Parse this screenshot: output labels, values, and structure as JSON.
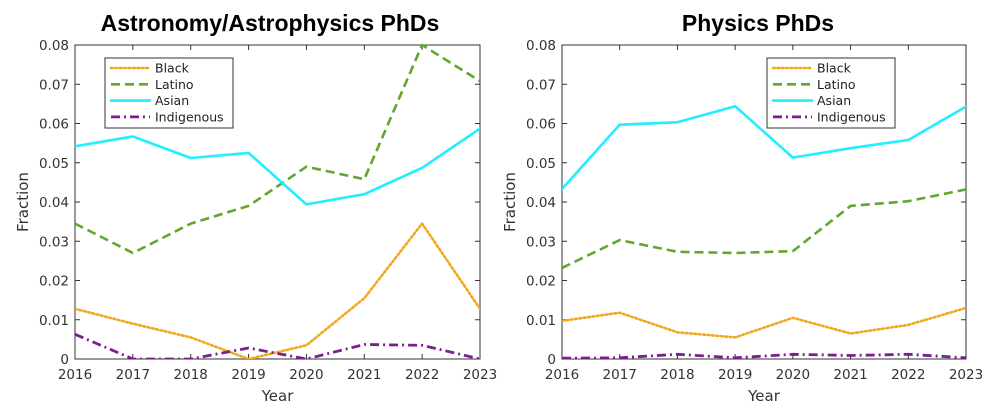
{
  "colors": {
    "black_series": "#f0a81e",
    "latino_series": "#5fa82c",
    "asian_series": "#22eeff",
    "indigenous_series": "#7b1f8f",
    "axis": "#333333"
  },
  "chart_data": [
    {
      "type": "line",
      "title": "Astronomy/Astrophysics PhDs",
      "xlabel": "Year",
      "ylabel": "Fraction",
      "xlim": [
        2016,
        2023
      ],
      "ylim": [
        0,
        0.08
      ],
      "x_ticks": [
        "2016",
        "2017",
        "2018",
        "2019",
        "2020",
        "2021",
        "2022",
        "2023"
      ],
      "y_ticks": [
        "0",
        "0.01",
        "0.02",
        "0.03",
        "0.04",
        "0.05",
        "0.06",
        "0.07",
        "0.08"
      ],
      "legend_position": "top-left",
      "x": [
        2016,
        2017,
        2018,
        2019,
        2020,
        2021,
        2022,
        2023
      ],
      "series": [
        {
          "name": "Black",
          "style": "dotted",
          "values": [
            0.0128,
            0.009,
            0.0055,
            0.0,
            0.0035,
            0.0155,
            0.0345,
            0.0128
          ]
        },
        {
          "name": "Latino",
          "style": "dashed",
          "values": [
            0.0345,
            0.027,
            0.0345,
            0.039,
            0.049,
            0.0458,
            0.08,
            0.0708
          ]
        },
        {
          "name": "Asian",
          "style": "solid",
          "values": [
            0.0542,
            0.0567,
            0.0512,
            0.0525,
            0.0394,
            0.042,
            0.0487,
            0.0587
          ]
        },
        {
          "name": "Indigenous",
          "style": "dashdot",
          "values": [
            0.0063,
            0.0,
            0.0,
            0.0028,
            0.0,
            0.0037,
            0.0035,
            0.0
          ]
        }
      ]
    },
    {
      "type": "line",
      "title": "Physics PhDs",
      "xlabel": "Year",
      "ylabel": "Fraction",
      "xlim": [
        2016,
        2023
      ],
      "ylim": [
        0,
        0.08
      ],
      "x_ticks": [
        "2016",
        "2017",
        "2018",
        "2019",
        "2020",
        "2021",
        "2022",
        "2023"
      ],
      "y_ticks": [
        "0",
        "0.01",
        "0.02",
        "0.03",
        "0.04",
        "0.05",
        "0.06",
        "0.07",
        "0.08"
      ],
      "legend_position": "top-right",
      "x": [
        2016,
        2017,
        2018,
        2019,
        2020,
        2021,
        2022,
        2023
      ],
      "series": [
        {
          "name": "Black",
          "style": "dotted",
          "values": [
            0.0097,
            0.0118,
            0.0068,
            0.0055,
            0.0105,
            0.0065,
            0.0087,
            0.013
          ]
        },
        {
          "name": "Latino",
          "style": "dashed",
          "values": [
            0.0232,
            0.0303,
            0.0273,
            0.027,
            0.0275,
            0.039,
            0.0402,
            0.0432
          ]
        },
        {
          "name": "Asian",
          "style": "solid",
          "values": [
            0.0433,
            0.0597,
            0.0603,
            0.0644,
            0.0513,
            0.0537,
            0.0558,
            0.0643
          ]
        },
        {
          "name": "Indigenous",
          "style": "dashdot",
          "values": [
            0.0002,
            0.0003,
            0.0012,
            0.0003,
            0.0012,
            0.0009,
            0.0012,
            0.0003
          ]
        }
      ]
    }
  ]
}
